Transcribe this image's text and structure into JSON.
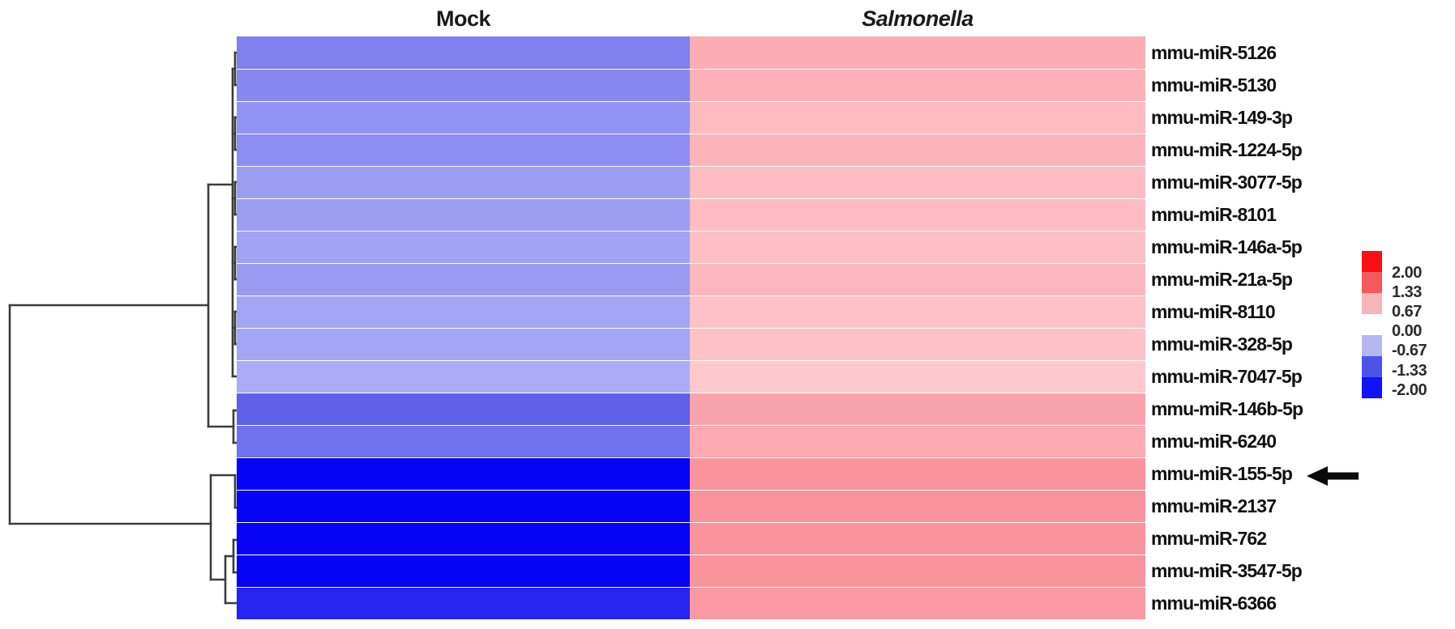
{
  "figure": {
    "background": "#ffffff",
    "dendrogram_color": "#3c3c3c"
  },
  "columns": {
    "mock_label": "Mock",
    "salmonella_label": "Salmonella"
  },
  "rows": [
    {
      "label": "mmu-miR-5126",
      "mock_color": "#7f81f0",
      "salmonella_color": "#fcadb4"
    },
    {
      "label": "mmu-miR-5130",
      "mock_color": "#8789f1",
      "salmonella_color": "#fcb1b8"
    },
    {
      "label": "mmu-miR-149-3p",
      "mock_color": "#9294f3",
      "salmonella_color": "#fdbabf"
    },
    {
      "label": "mmu-miR-1224-5p",
      "mock_color": "#8c8ef2",
      "salmonella_color": "#fcb4bb"
    },
    {
      "label": "mmu-miR-3077-5p",
      "mock_color": "#9c9ef4",
      "salmonella_color": "#fdbcc1"
    },
    {
      "label": "mmu-miR-8101",
      "mock_color": "#9c9ef4",
      "salmonella_color": "#fdbcc1"
    },
    {
      "label": "mmu-miR-146a-5p",
      "mock_color": "#a1a3f5",
      "salmonella_color": "#fdbfc4"
    },
    {
      "label": "mmu-miR-21a-5p",
      "mock_color": "#999bf3",
      "salmonella_color": "#fcb6bd"
    },
    {
      "label": "mmu-miR-8110",
      "mock_color": "#a3a5f5",
      "salmonella_color": "#fdc1c6"
    },
    {
      "label": "mmu-miR-328-5p",
      "mock_color": "#a3a5f5",
      "salmonella_color": "#fdc1c6"
    },
    {
      "label": "mmu-miR-7047-5p",
      "mock_color": "#aaacf6",
      "salmonella_color": "#fec8cc"
    },
    {
      "label": "mmu-miR-146b-5p",
      "mock_color": "#5e60ea",
      "salmonella_color": "#fba3ac"
    },
    {
      "label": "mmu-miR-6240",
      "mock_color": "#7072ee",
      "salmonella_color": "#fcaab2"
    },
    {
      "label": "mmu-miR-155-5p",
      "mock_color": "#0703f6",
      "salmonella_color": "#f9939c"
    },
    {
      "label": "mmu-miR-2137",
      "mock_color": "#0703f6",
      "salmonella_color": "#f9939c"
    },
    {
      "label": "mmu-miR-762",
      "mock_color": "#0703f6",
      "salmonella_color": "#f9939c"
    },
    {
      "label": "mmu-miR-3547-5p",
      "mock_color": "#0703f6",
      "salmonella_color": "#f9939c"
    },
    {
      "label": "mmu-miR-6366",
      "mock_color": "#2724f1",
      "salmonella_color": "#fa99a1"
    }
  ],
  "legend": {
    "stops": [
      {
        "label": "2.00",
        "color": "#fa0f14"
      },
      {
        "label": "1.33",
        "color": "#f2595c"
      },
      {
        "label": "0.67",
        "color": "#f6b6b8"
      },
      {
        "label": "0.00",
        "color": "#ffffff"
      },
      {
        "label": "-0.67",
        "color": "#b3b7f2"
      },
      {
        "label": "-1.33",
        "color": "#4d52e9"
      },
      {
        "label": "-2.00",
        "color": "#1013f6"
      }
    ]
  },
  "annotation": {
    "arrow_points_to": "mmu-miR-155-5p"
  },
  "dendrogram_segments": [
    [
      12,
      377,
      12,
      647
    ],
    [
      12,
      377,
      257,
      377
    ],
    [
      12,
      647,
      260,
      647
    ],
    [
      257,
      228,
      257,
      527
    ],
    [
      257,
      228,
      287,
      228
    ],
    [
      257,
      527,
      288,
      527
    ],
    [
      287,
      85,
      287,
      465
    ],
    [
      287,
      85,
      290,
      85
    ],
    [
      287,
      165,
      290,
      165
    ],
    [
      287,
      245,
      290,
      245
    ],
    [
      287,
      325,
      290,
      325
    ],
    [
      287,
      405,
      290,
      405
    ],
    [
      287,
      465,
      293,
      465
    ],
    [
      290,
      65,
      290,
      105
    ],
    [
      290,
      65,
      293,
      65
    ],
    [
      290,
      105,
      293,
      105
    ],
    [
      290,
      145,
      290,
      185
    ],
    [
      290,
      145,
      293,
      145
    ],
    [
      290,
      185,
      293,
      185
    ],
    [
      290,
      225,
      290,
      265
    ],
    [
      290,
      225,
      293,
      225
    ],
    [
      290,
      265,
      293,
      265
    ],
    [
      290,
      305,
      290,
      345
    ],
    [
      290,
      305,
      293,
      305
    ],
    [
      290,
      345,
      293,
      345
    ],
    [
      290,
      385,
      290,
      425
    ],
    [
      290,
      385,
      293,
      385
    ],
    [
      290,
      425,
      293,
      425
    ],
    [
      288,
      507,
      288,
      547
    ],
    [
      288,
      507,
      293,
      507
    ],
    [
      288,
      547,
      293,
      547
    ],
    [
      260,
      587,
      260,
      716
    ],
    [
      260,
      587,
      290,
      587
    ],
    [
      290,
      587,
      290,
      627
    ],
    [
      290,
      627,
      293,
      627
    ],
    [
      260,
      716,
      278,
      716
    ],
    [
      278,
      687,
      278,
      745
    ],
    [
      278,
      687,
      288,
      687
    ],
    [
      278,
      745,
      293,
      745
    ],
    [
      288,
      667,
      288,
      707
    ],
    [
      288,
      667,
      293,
      667
    ],
    [
      288,
      707,
      293,
      707
    ]
  ],
  "chart_data": {
    "type": "heatmap",
    "title": "",
    "columns": [
      "Mock",
      "Salmonella"
    ],
    "rows": [
      "mmu-miR-5126",
      "mmu-miR-5130",
      "mmu-miR-149-3p",
      "mmu-miR-1224-5p",
      "mmu-miR-3077-5p",
      "mmu-miR-8101",
      "mmu-miR-146a-5p",
      "mmu-miR-21a-5p",
      "mmu-miR-8110",
      "mmu-miR-328-5p",
      "mmu-miR-7047-5p",
      "mmu-miR-146b-5p",
      "mmu-miR-6240",
      "mmu-miR-155-5p",
      "mmu-miR-2137",
      "mmu-miR-762",
      "mmu-miR-3547-5p",
      "mmu-miR-6366"
    ],
    "values_estimated_from_color": [
      [
        -1.0,
        0.8
      ],
      [
        -0.95,
        0.78
      ],
      [
        -0.85,
        0.72
      ],
      [
        -0.9,
        0.75
      ],
      [
        -0.78,
        0.7
      ],
      [
        -0.78,
        0.7
      ],
      [
        -0.75,
        0.68
      ],
      [
        -0.8,
        0.72
      ],
      [
        -0.72,
        0.66
      ],
      [
        -0.72,
        0.66
      ],
      [
        -0.67,
        0.62
      ],
      [
        -1.3,
        1.0
      ],
      [
        -1.15,
        0.95
      ],
      [
        -2.0,
        1.2
      ],
      [
        -2.0,
        1.2
      ],
      [
        -2.0,
        1.2
      ],
      [
        -2.0,
        1.2
      ],
      [
        -1.85,
        1.15
      ]
    ],
    "colorscale": {
      "min": -2.0,
      "max": 2.0,
      "tick_labels": [
        "2.00",
        "1.33",
        "0.67",
        "0.00",
        "-0.67",
        "-1.33",
        "-2.00"
      ],
      "negative": "blue",
      "positive": "red"
    },
    "legend_position": "right",
    "row_dendrogram": "left",
    "annotations": [
      {
        "type": "arrow-left",
        "target_row": "mmu-miR-155-5p"
      }
    ]
  }
}
